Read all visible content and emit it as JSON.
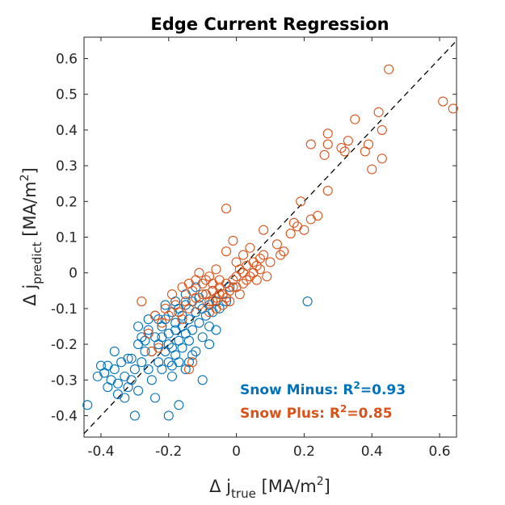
{
  "chart_data": {
    "type": "scatter",
    "title": "Edge Current Regression",
    "xlabel": {
      "main": "Δ j",
      "sub": "true",
      "unit": "[MA/m",
      "sup": "2",
      "close": "]"
    },
    "ylabel": {
      "main": "Δ j",
      "sub": "predict",
      "unit": "[MA/m",
      "sup": "2",
      "close": "]"
    },
    "xlim": [
      -0.45,
      0.65
    ],
    "ylim": [
      -0.46,
      0.66
    ],
    "xticks": [
      -0.4,
      -0.2,
      0,
      0.2,
      0.4,
      0.6
    ],
    "xtick_labels": [
      "-0.4",
      "-0.2",
      "0",
      "0.2",
      "0.4",
      "0.6"
    ],
    "yticks": [
      -0.4,
      -0.3,
      -0.2,
      -0.1,
      0,
      0.1,
      0.2,
      0.3,
      0.4,
      0.5,
      0.6
    ],
    "ytick_labels": [
      "-0.4",
      "-0.3",
      "-0.2",
      "-0.1",
      "0",
      "0.1",
      "0.2",
      "0.3",
      "0.4",
      "0.5",
      "0.6"
    ],
    "grid": false,
    "reference_line": "y = x (dashed)",
    "legend_placement": "bottom-right",
    "series": [
      {
        "name": "Snow Minus",
        "r2": "0.93",
        "color": "#0072BD",
        "points": [
          [
            -0.44,
            -0.37
          ],
          [
            -0.41,
            -0.29
          ],
          [
            -0.4,
            -0.26
          ],
          [
            -0.39,
            -0.28
          ],
          [
            -0.38,
            -0.32
          ],
          [
            -0.37,
            -0.3
          ],
          [
            -0.36,
            -0.27
          ],
          [
            -0.35,
            -0.34
          ],
          [
            -0.35,
            -0.31
          ],
          [
            -0.34,
            -0.25
          ],
          [
            -0.33,
            -0.29
          ],
          [
            -0.32,
            -0.32
          ],
          [
            -0.31,
            -0.24
          ],
          [
            -0.31,
            -0.3
          ],
          [
            -0.3,
            -0.27
          ],
          [
            -0.29,
            -0.15
          ],
          [
            -0.29,
            -0.2
          ],
          [
            -0.28,
            -0.18
          ],
          [
            -0.28,
            -0.25
          ],
          [
            -0.27,
            -0.22
          ],
          [
            -0.26,
            -0.27
          ],
          [
            -0.25,
            -0.3
          ],
          [
            -0.25,
            -0.22
          ],
          [
            -0.24,
            -0.35
          ],
          [
            -0.24,
            -0.12
          ],
          [
            -0.23,
            -0.25
          ],
          [
            -0.23,
            -0.2
          ],
          [
            -0.22,
            -0.18
          ],
          [
            -0.22,
            -0.15
          ],
          [
            -0.22,
            -0.27
          ],
          [
            -0.21,
            -0.22
          ],
          [
            -0.21,
            -0.13
          ],
          [
            -0.2,
            -0.2
          ],
          [
            -0.2,
            -0.25
          ],
          [
            -0.2,
            -0.17
          ],
          [
            -0.19,
            -0.29
          ],
          [
            -0.19,
            -0.21
          ],
          [
            -0.19,
            -0.11
          ],
          [
            -0.18,
            -0.16
          ],
          [
            -0.18,
            -0.23
          ],
          [
            -0.18,
            -0.14
          ],
          [
            -0.17,
            -0.19
          ],
          [
            -0.17,
            -0.1
          ],
          [
            -0.17,
            -0.25
          ],
          [
            -0.16,
            -0.15
          ],
          [
            -0.16,
            -0.21
          ],
          [
            -0.16,
            -0.12
          ],
          [
            -0.15,
            -0.17
          ],
          [
            -0.15,
            -0.09
          ],
          [
            -0.15,
            -0.27
          ],
          [
            -0.14,
            -0.13
          ],
          [
            -0.14,
            -0.19
          ],
          [
            -0.13,
            -0.08
          ],
          [
            -0.13,
            -0.16
          ],
          [
            -0.12,
            -0.11
          ],
          [
            -0.12,
            -0.22
          ],
          [
            -0.11,
            -0.07
          ],
          [
            -0.11,
            -0.14
          ],
          [
            -0.1,
            -0.1
          ],
          [
            -0.1,
            -0.18
          ],
          [
            -0.09,
            -0.06
          ],
          [
            -0.09,
            -0.12
          ],
          [
            -0.08,
            -0.09
          ],
          [
            -0.08,
            -0.15
          ],
          [
            -0.07,
            -0.05
          ],
          [
            -0.07,
            -0.11
          ],
          [
            -0.06,
            -0.08
          ],
          [
            -0.05,
            -0.1
          ],
          [
            -0.04,
            -0.06
          ],
          [
            -0.03,
            -0.08
          ],
          [
            -0.02,
            -0.04
          ],
          [
            -0.3,
            -0.4
          ],
          [
            -0.2,
            -0.4
          ],
          [
            -0.17,
            -0.37
          ],
          [
            -0.1,
            -0.3
          ],
          [
            -0.26,
            -0.16
          ],
          [
            -0.21,
            -0.09
          ],
          [
            -0.13,
            -0.23
          ],
          [
            -0.23,
            -0.13
          ],
          [
            -0.27,
            -0.19
          ],
          [
            -0.32,
            -0.24
          ],
          [
            -0.36,
            -0.22
          ],
          [
            -0.18,
            -0.08
          ],
          [
            -0.08,
            -0.2
          ],
          [
            0.21,
            -0.08
          ],
          [
            -0.24,
            -0.18
          ],
          [
            -0.19,
            -0.26
          ],
          [
            -0.14,
            -0.25
          ],
          [
            -0.06,
            -0.16
          ],
          [
            -0.29,
            -0.33
          ],
          [
            -0.33,
            -0.35
          ],
          [
            -0.38,
            -0.26
          ],
          [
            -0.26,
            -0.13
          ],
          [
            -0.15,
            -0.06
          ],
          [
            -0.12,
            -0.04
          ]
        ]
      },
      {
        "name": "Snow Plus",
        "r2": "0.85",
        "color": "#D95319",
        "points": [
          [
            0.61,
            0.48
          ],
          [
            0.64,
            0.46
          ],
          [
            0.45,
            0.57
          ],
          [
            0.42,
            0.45
          ],
          [
            0.43,
            0.4
          ],
          [
            0.35,
            0.43
          ],
          [
            0.33,
            0.37
          ],
          [
            0.31,
            0.35
          ],
          [
            0.32,
            0.34
          ],
          [
            0.27,
            0.36
          ],
          [
            0.26,
            0.33
          ],
          [
            0.27,
            0.39
          ],
          [
            0.22,
            0.36
          ],
          [
            0.38,
            0.34
          ],
          [
            0.39,
            0.36
          ],
          [
            0.43,
            0.32
          ],
          [
            0.4,
            0.29
          ],
          [
            0.22,
            0.15
          ],
          [
            0.27,
            0.23
          ],
          [
            0.2,
            0.12
          ],
          [
            0.19,
            0.2
          ],
          [
            0.17,
            0.14
          ],
          [
            0.16,
            0.11
          ],
          [
            0.18,
            0.13
          ],
          [
            0.24,
            0.16
          ],
          [
            0.14,
            0.06
          ],
          [
            0.13,
            0.05
          ],
          [
            0.1,
            0.03
          ],
          [
            0.08,
            0.12
          ],
          [
            0.07,
            0.04
          ],
          [
            0.12,
            0.08
          ],
          [
            -0.03,
            0.18
          ],
          [
            0.06,
            0.02
          ],
          [
            0.05,
            0.0
          ],
          [
            0.04,
            -0.01
          ],
          [
            0.03,
            -0.02
          ],
          [
            0.02,
            -0.03
          ],
          [
            0.01,
            0.01
          ],
          [
            0.0,
            -0.04
          ],
          [
            -0.01,
            -0.02
          ],
          [
            -0.02,
            -0.05
          ],
          [
            -0.03,
            -0.03
          ],
          [
            -0.04,
            -0.06
          ],
          [
            -0.05,
            -0.04
          ],
          [
            -0.06,
            -0.07
          ],
          [
            -0.07,
            -0.05
          ],
          [
            -0.08,
            -0.08
          ],
          [
            -0.09,
            -0.06
          ],
          [
            -0.1,
            -0.03
          ],
          [
            -0.11,
            -0.09
          ],
          [
            -0.12,
            -0.07
          ],
          [
            -0.13,
            -0.05
          ],
          [
            -0.14,
            -0.1
          ],
          [
            -0.15,
            -0.08
          ],
          [
            -0.16,
            -0.04
          ],
          [
            -0.17,
            -0.11
          ],
          [
            -0.18,
            -0.09
          ],
          [
            -0.19,
            -0.06
          ],
          [
            -0.2,
            -0.12
          ],
          [
            -0.21,
            -0.1
          ],
          [
            -0.22,
            -0.14
          ],
          [
            -0.24,
            -0.12
          ],
          [
            -0.26,
            -0.17
          ],
          [
            -0.28,
            -0.08
          ],
          [
            -0.25,
            -0.22
          ],
          [
            -0.23,
            -0.21
          ],
          [
            -0.14,
            -0.27
          ],
          [
            -0.13,
            -0.25
          ],
          [
            -0.03,
            0.06
          ],
          [
            -0.01,
            0.09
          ],
          [
            0.02,
            0.05
          ],
          [
            0.04,
            0.07
          ],
          [
            -0.06,
            0.01
          ],
          [
            -0.08,
            -0.01
          ],
          [
            -0.11,
            0.0
          ],
          [
            -0.05,
            -0.02
          ],
          [
            -0.07,
            -0.03
          ],
          [
            -0.09,
            -0.02
          ],
          [
            -0.1,
            -0.06
          ],
          [
            -0.12,
            -0.02
          ],
          [
            0.01,
            -0.06
          ],
          [
            -0.02,
            -0.08
          ],
          [
            -0.04,
            -0.09
          ],
          [
            0.0,
            -0.01
          ],
          [
            0.03,
            0.02
          ],
          [
            -0.06,
            -0.1
          ],
          [
            -0.08,
            -0.11
          ],
          [
            -0.03,
            -0.07
          ],
          [
            0.05,
            0.03
          ],
          [
            0.07,
            0.01
          ],
          [
            0.09,
            -0.01
          ],
          [
            -0.14,
            -0.03
          ],
          [
            -0.16,
            -0.13
          ],
          [
            0.0,
            0.03
          ],
          [
            0.02,
            0.0
          ],
          [
            -0.01,
            -0.04
          ],
          [
            -0.05,
            -0.06
          ],
          [
            -0.07,
            -0.08
          ],
          [
            0.06,
            -0.02
          ],
          [
            0.08,
            0.05
          ]
        ]
      }
    ]
  }
}
